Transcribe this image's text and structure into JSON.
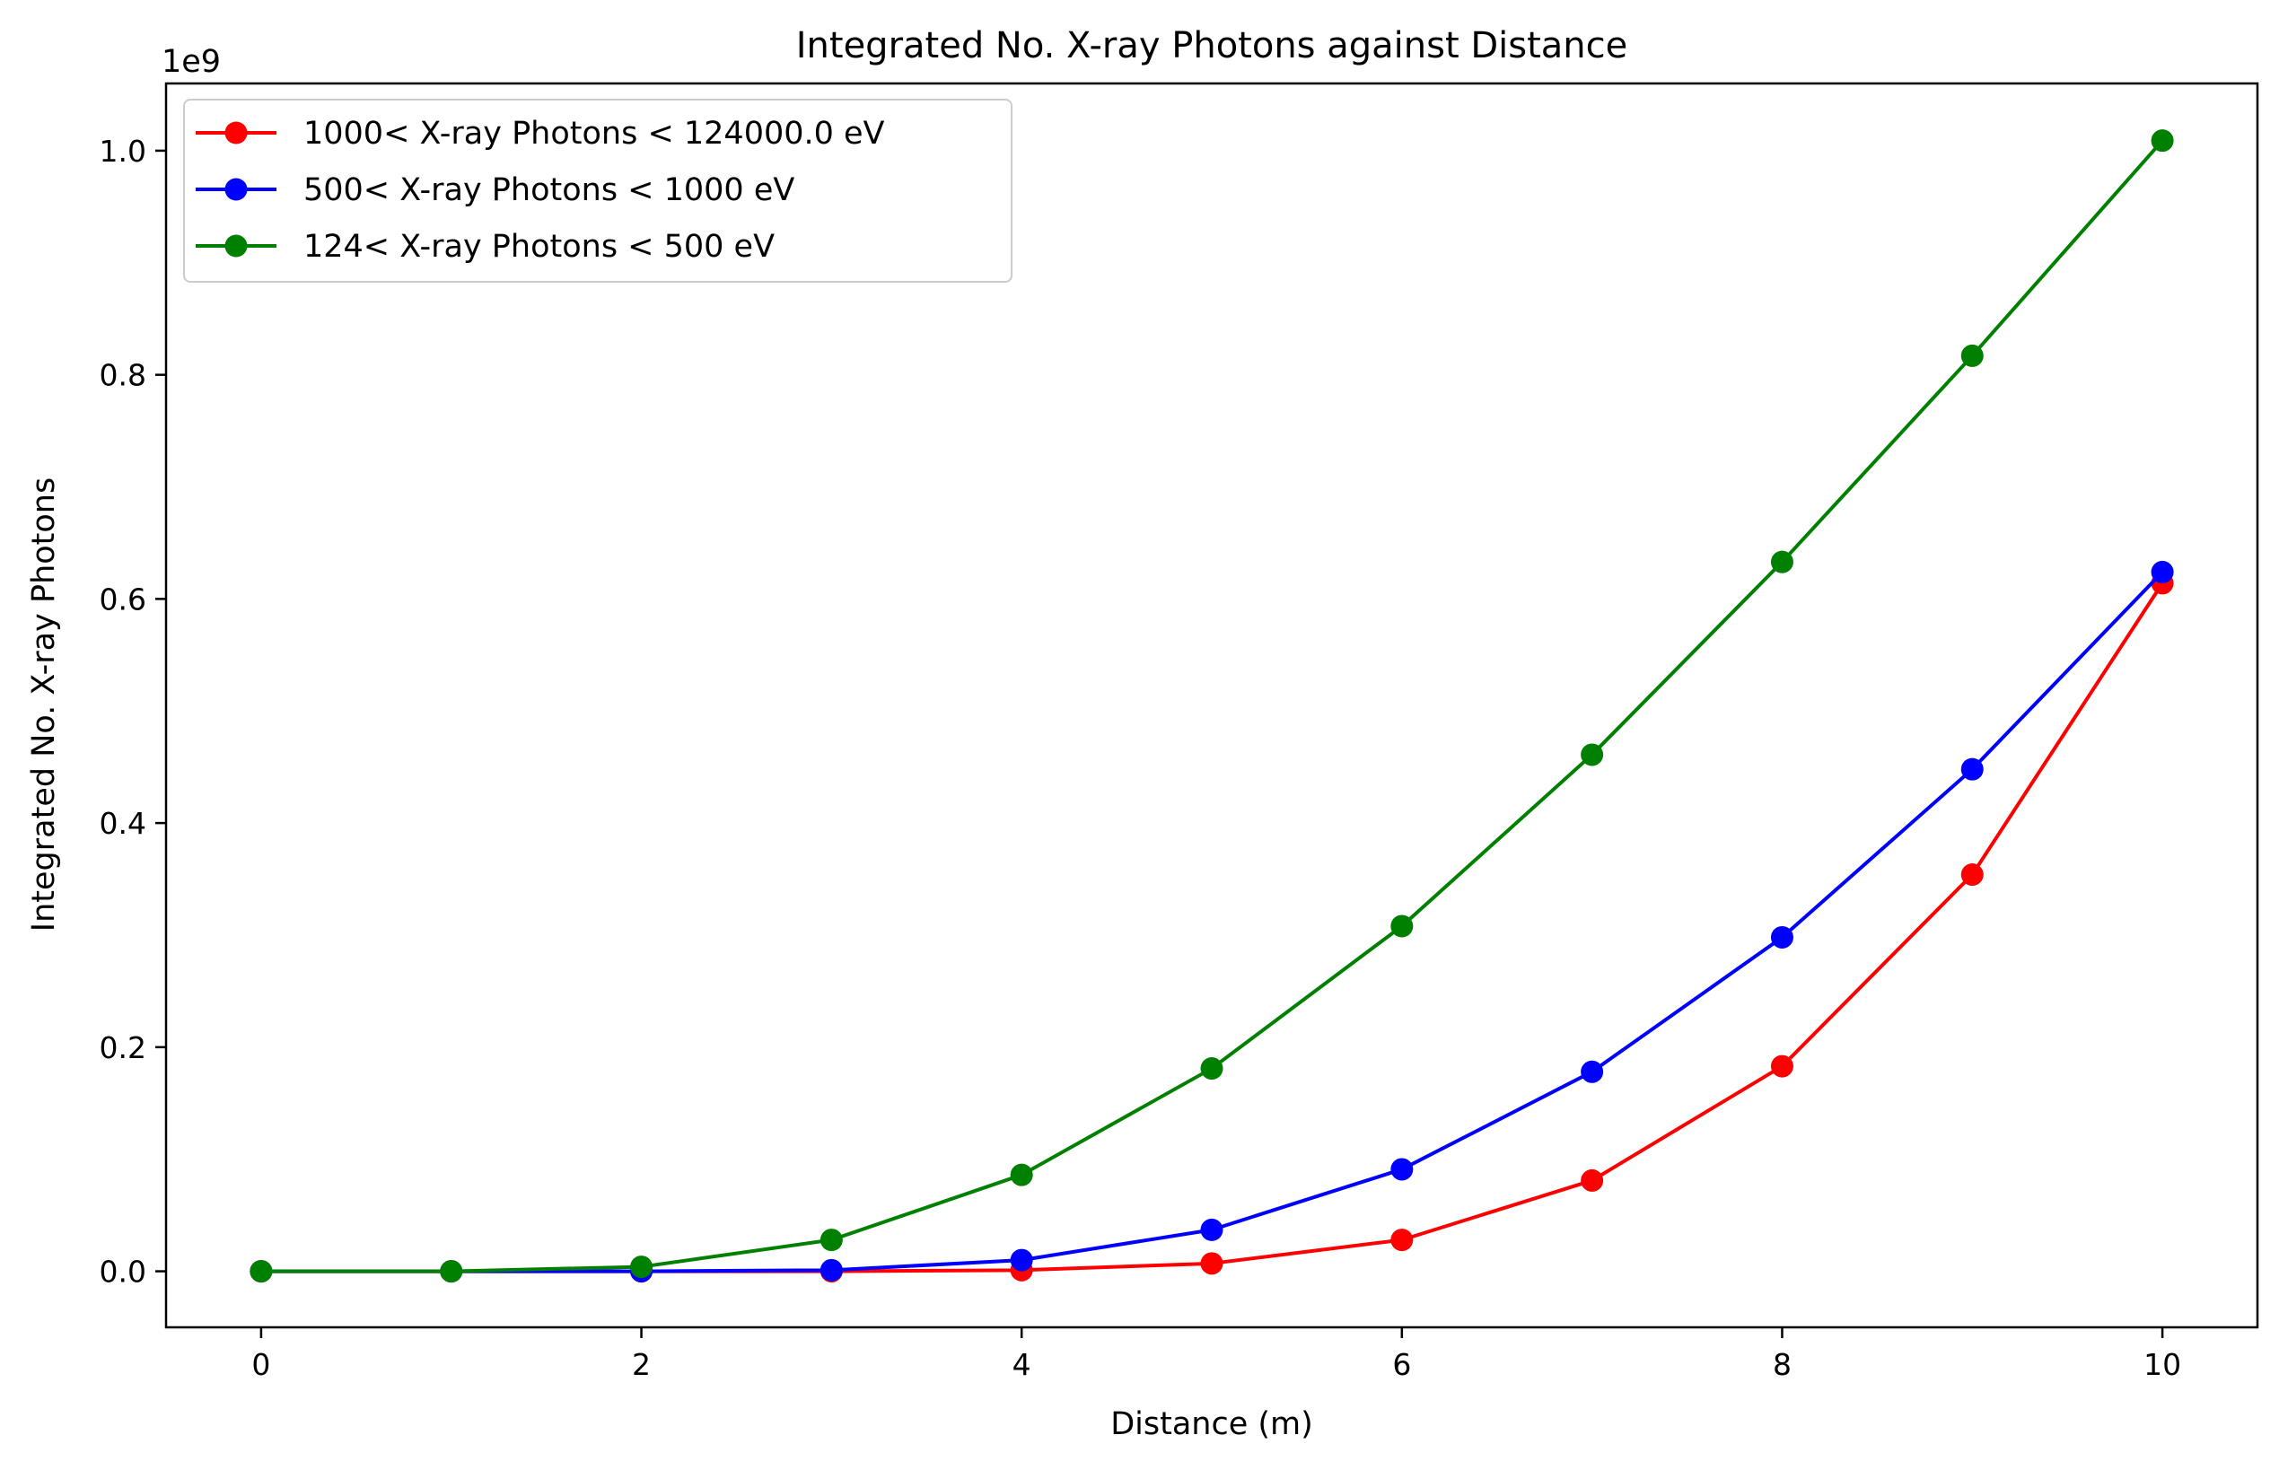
{
  "chart_data": {
    "type": "line",
    "title": "Integrated No. X-ray Photons against Distance",
    "xlabel": "Distance (m)",
    "ylabel": "Integrated No. X-ray Photons",
    "y_offset_label": "1e9",
    "xlim": [
      -0.5,
      10.5
    ],
    "ylim": [
      -0.05,
      1.06
    ],
    "x_ticks": [
      0,
      2,
      4,
      6,
      8,
      10
    ],
    "x_tick_labels": [
      "0",
      "2",
      "4",
      "6",
      "8",
      "10"
    ],
    "y_ticks": [
      0.0,
      0.2,
      0.4,
      0.6,
      0.8,
      1.0
    ],
    "y_tick_labels": [
      "0.0",
      "0.2",
      "0.4",
      "0.6",
      "0.8",
      "1.0"
    ],
    "grid": false,
    "legend_position": "top-left",
    "x": [
      0,
      1,
      2,
      3,
      4,
      5,
      6,
      7,
      8,
      9,
      10
    ],
    "series": [
      {
        "name": "1000< X-ray Photons < 124000.0 eV",
        "color": "#ff0000",
        "values": [
          0.0,
          0.0,
          0.0,
          0.0,
          0.001,
          0.007,
          0.028,
          0.081,
          0.183,
          0.354,
          0.614
        ]
      },
      {
        "name": "500< X-ray Photons < 1000 eV",
        "color": "#0000ff",
        "values": [
          0.0,
          0.0,
          0.0,
          0.001,
          0.01,
          0.037,
          0.091,
          0.178,
          0.298,
          0.448,
          0.624
        ]
      },
      {
        "name": "124< X-ray Photons < 500 eV",
        "color": "#008000",
        "values": [
          0.0,
          0.0,
          0.004,
          0.028,
          0.086,
          0.181,
          0.308,
          0.461,
          0.633,
          0.817,
          1.009
        ]
      }
    ]
  }
}
